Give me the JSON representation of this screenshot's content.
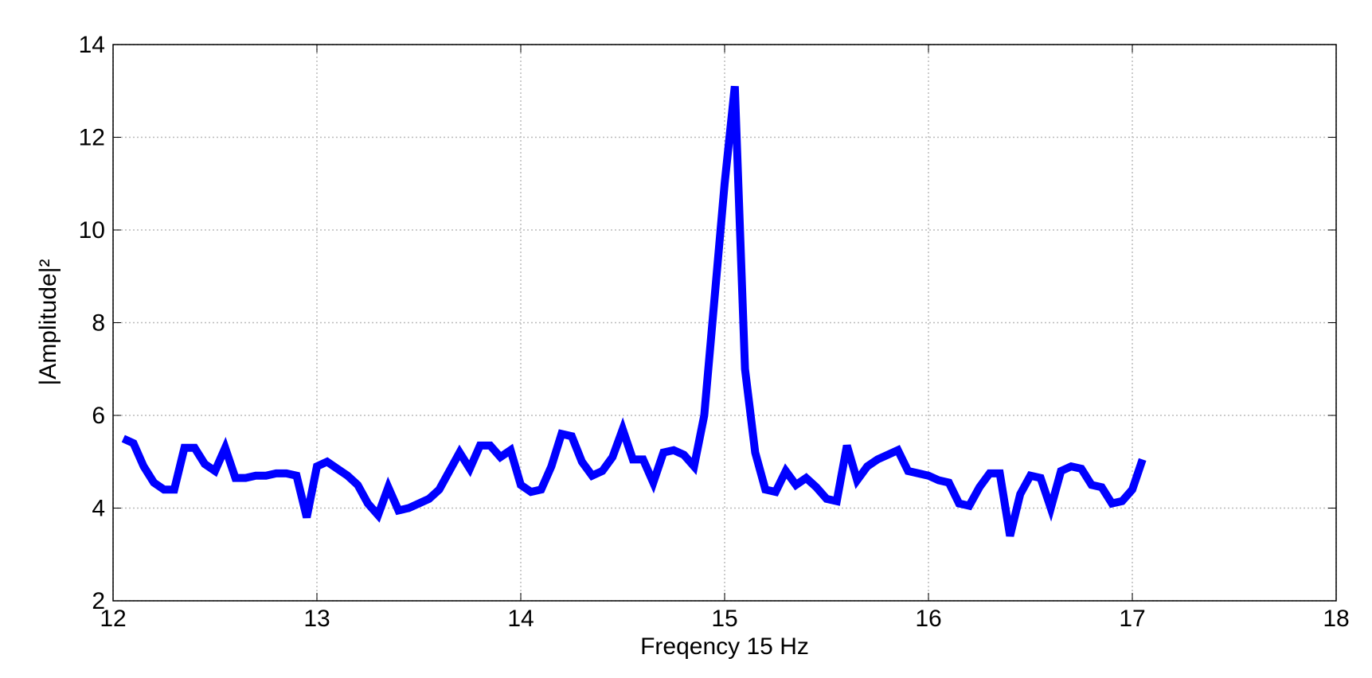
{
  "chart_data": {
    "type": "line",
    "xlabel": "Freqency 15 Hz",
    "ylabel": "|Amplitude|²",
    "x": [
      12.05,
      12.1,
      12.15,
      12.2,
      12.25,
      12.3,
      12.35,
      12.4,
      12.45,
      12.5,
      12.55,
      12.6,
      12.65,
      12.7,
      12.75,
      12.8,
      12.85,
      12.9,
      12.95,
      13.0,
      13.05,
      13.1,
      13.15,
      13.2,
      13.25,
      13.3,
      13.35,
      13.4,
      13.45,
      13.5,
      13.55,
      13.6,
      13.65,
      13.7,
      13.75,
      13.8,
      13.85,
      13.9,
      13.95,
      14.0,
      14.05,
      14.1,
      14.15,
      14.2,
      14.25,
      14.3,
      14.35,
      14.4,
      14.45,
      14.5,
      14.55,
      14.6,
      14.65,
      14.7,
      14.75,
      14.8,
      14.85,
      14.9,
      14.95,
      15.0,
      15.05,
      15.1,
      15.15,
      15.2,
      15.25,
      15.3,
      15.35,
      15.4,
      15.45,
      15.5,
      15.55,
      15.6,
      15.65,
      15.7,
      15.75,
      15.8,
      15.85,
      15.9,
      15.95,
      16.0,
      16.05,
      16.1,
      16.15,
      16.2,
      16.25,
      16.3,
      16.35,
      16.4,
      16.45,
      16.5,
      16.55,
      16.6,
      16.65,
      16.7,
      16.75,
      16.8,
      16.85,
      16.9,
      16.95,
      17.0,
      17.05
    ],
    "series": [
      {
        "color": "#0000ff",
        "values": [
          5.5,
          5.4,
          4.9,
          4.55,
          4.4,
          4.4,
          5.3,
          5.3,
          4.95,
          4.8,
          5.3,
          4.65,
          4.65,
          4.7,
          4.7,
          4.75,
          4.75,
          4.7,
          3.8,
          4.9,
          5.0,
          4.85,
          4.7,
          4.5,
          4.1,
          3.85,
          4.45,
          3.95,
          4.0,
          4.1,
          4.2,
          4.4,
          4.8,
          5.2,
          4.85,
          5.35,
          5.35,
          5.1,
          5.25,
          4.5,
          4.35,
          4.4,
          4.9,
          5.6,
          5.55,
          5.0,
          4.7,
          4.8,
          5.1,
          5.7,
          5.05,
          5.05,
          4.55,
          5.2,
          5.25,
          5.15,
          4.9,
          6.0,
          8.5,
          11.0,
          13.1,
          7.0,
          5.2,
          4.4,
          4.35,
          4.8,
          4.5,
          4.65,
          4.45,
          4.2,
          4.15,
          5.35,
          4.6,
          4.9,
          5.05,
          5.15,
          5.25,
          4.8,
          4.75,
          4.7,
          4.6,
          4.55,
          4.1,
          4.05,
          4.45,
          4.75,
          4.75,
          3.4,
          4.3,
          4.7,
          4.65,
          4.0,
          4.8,
          4.9,
          4.85,
          4.5,
          4.45,
          4.1,
          4.15,
          4.4,
          5.05
        ]
      }
    ],
    "xlim": [
      12,
      18
    ],
    "xticks": [
      12,
      13,
      14,
      15,
      16,
      17,
      18
    ],
    "ylim": [
      2,
      14
    ],
    "yticks": [
      2,
      4,
      6,
      8,
      10,
      12,
      14
    ],
    "grid": true
  }
}
